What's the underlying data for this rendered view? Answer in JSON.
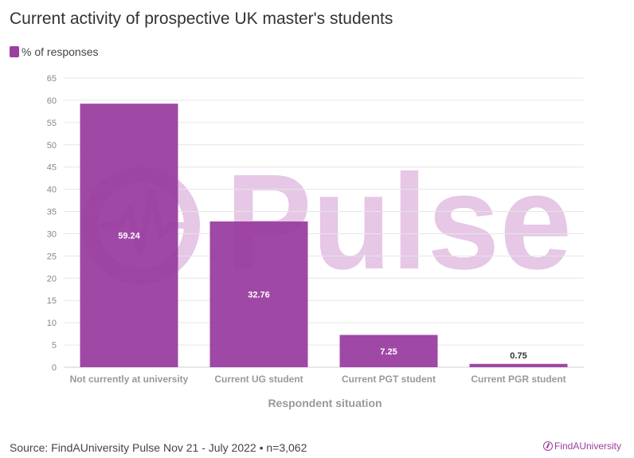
{
  "title": "Current activity of prospective UK master's students",
  "legend": {
    "label": "% of responses",
    "color": "#9a3ea0"
  },
  "footer": {
    "source": "Source: FindAUniversity Pulse Nov 21 - July 2022 • n=3,062"
  },
  "logo": {
    "text": "FindAUniversity",
    "color": "#9a3c9d"
  },
  "watermark": {
    "text": "Pulse",
    "color": "#e6c7e6"
  },
  "chart_data": {
    "type": "bar",
    "categories": [
      "Not currently at university",
      "Current UG student",
      "Current PGT student",
      "Current PGR student"
    ],
    "series": [
      {
        "name": "% of responses",
        "values": [
          59.24,
          32.76,
          7.25,
          0.75
        ]
      }
    ],
    "data_labels": [
      "59.24",
      "32.76",
      "7.25",
      "0.75"
    ],
    "xlabel": "Respondent situation",
    "ylabel": "",
    "ylim": [
      0,
      65
    ],
    "yticks": [
      0,
      5,
      10,
      15,
      20,
      25,
      30,
      35,
      40,
      45,
      50,
      55,
      60,
      65
    ],
    "grid": true,
    "legend_position": "top-left",
    "bar_color": "#9a3ea0"
  }
}
